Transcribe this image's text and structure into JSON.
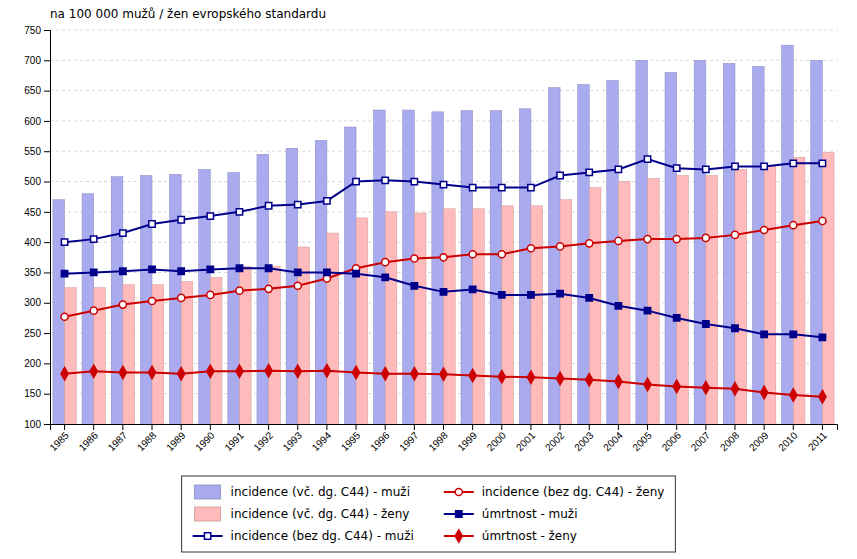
{
  "chart_data": {
    "type": "bar",
    "ylabel": "na 100 000 mužů / žen evropského standardu",
    "categories": [
      "1985",
      "1986",
      "1987",
      "1988",
      "1989",
      "1990",
      "1991",
      "1992",
      "1993",
      "1994",
      "1995",
      "1996",
      "1997",
      "1998",
      "1999",
      "2000",
      "2001",
      "2002",
      "2003",
      "2004",
      "2005",
      "2006",
      "2007",
      "2008",
      "2009",
      "2010",
      "2011"
    ],
    "series": [
      {
        "name": "incidence (vč. dg. C44) - muži",
        "type": "bar",
        "color": "#AAAAEE",
        "values": [
          470,
          480,
          508,
          510,
          512,
          520,
          515,
          545,
          555,
          568,
          590,
          618,
          618,
          615,
          617,
          617,
          620,
          655,
          660,
          667,
          700,
          680,
          700,
          695,
          690,
          725,
          700
        ]
      },
      {
        "name": "incidence (vč. dg. C44) - ženy",
        "type": "bar",
        "color": "#FFBBBB",
        "values": [
          325,
          325,
          330,
          330,
          335,
          342,
          360,
          360,
          392,
          415,
          440,
          450,
          448,
          455,
          455,
          460,
          460,
          470,
          490,
          500,
          505,
          510,
          510,
          520,
          525,
          540,
          548
        ]
      },
      {
        "name": "incidence (bez dg. C44) - muži",
        "type": "line",
        "color": "#00008B",
        "marker": "open-square",
        "line_style": "solid",
        "values": [
          400,
          405,
          415,
          430,
          437,
          443,
          450,
          460,
          462,
          468,
          500,
          502,
          500,
          495,
          490,
          490,
          490,
          510,
          515,
          520,
          537,
          522,
          520,
          525,
          525,
          530,
          530
        ]
      },
      {
        "name": "incidence (bez dg. C44) - ženy",
        "type": "line",
        "color": "#CC0000",
        "marker": "open-circle",
        "line_style": "solid",
        "values": [
          277,
          287,
          297,
          303,
          308,
          313,
          320,
          323,
          328,
          340,
          357,
          367,
          373,
          375,
          380,
          380,
          390,
          393,
          398,
          402,
          405,
          405,
          407,
          412,
          420,
          428,
          435
        ]
      },
      {
        "name": "úmrtnost - muži",
        "type": "line",
        "color": "#00008B",
        "marker": "square",
        "line_style": "solid",
        "values": [
          348,
          350,
          352,
          355,
          352,
          355,
          357,
          357,
          350,
          350,
          348,
          342,
          328,
          318,
          322,
          313,
          313,
          315,
          308,
          295,
          287,
          275,
          265,
          258,
          248,
          248,
          243
        ]
      },
      {
        "name": "úmrtnost - ženy",
        "type": "line",
        "color": "#CC0000",
        "marker": "diamond",
        "line_style": "solid",
        "values": [
          183,
          187,
          185,
          185,
          183,
          187,
          187,
          188,
          187,
          188,
          185,
          183,
          183,
          182,
          180,
          178,
          177,
          175,
          173,
          170,
          165,
          162,
          160,
          158,
          152,
          148,
          145
        ]
      }
    ],
    "ylim": [
      100,
      750
    ],
    "yticks": [
      100,
      150,
      200,
      250,
      300,
      350,
      400,
      450,
      500,
      550,
      600,
      650,
      700,
      750
    ],
    "grid": true,
    "legend": "bottom"
  }
}
